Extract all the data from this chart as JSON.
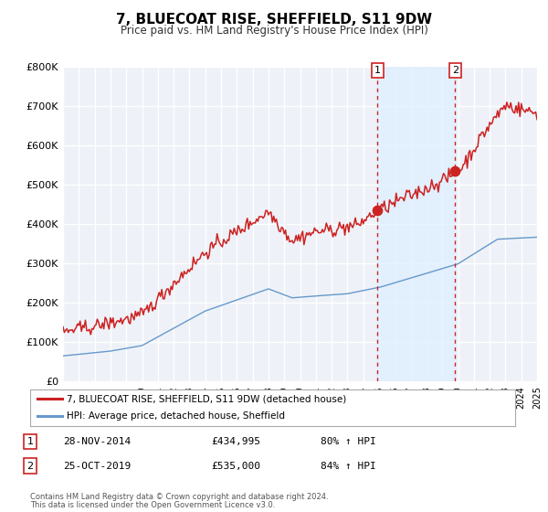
{
  "title": "7, BLUECOAT RISE, SHEFFIELD, S11 9DW",
  "subtitle": "Price paid vs. HM Land Registry's House Price Index (HPI)",
  "ylim": [
    0,
    800000
  ],
  "xlim_start": 1995,
  "xlim_end": 2025,
  "background_color": "#ffffff",
  "plot_bg_color": "#eef2f8",
  "grid_color": "#ffffff",
  "red_line_color": "#cc2222",
  "blue_line_color": "#6699cc",
  "span_fill_color": "#ddeeff",
  "marker1_x": 2014.91,
  "marker1_y": 434995,
  "marker2_x": 2019.81,
  "marker2_y": 535000,
  "vline1_x": 2014.91,
  "vline2_x": 2019.81,
  "legend_entries": [
    "7, BLUECOAT RISE, SHEFFIELD, S11 9DW (detached house)",
    "HPI: Average price, detached house, Sheffield"
  ],
  "table_rows": [
    [
      "1",
      "28-NOV-2014",
      "£434,995",
      "80% ↑ HPI"
    ],
    [
      "2",
      "25-OCT-2019",
      "£535,000",
      "84% ↑ HPI"
    ]
  ],
  "footnote1": "Contains HM Land Registry data © Crown copyright and database right 2024.",
  "footnote2": "This data is licensed under the Open Government Licence v3.0.",
  "ytick_labels": [
    "£0",
    "£100K",
    "£200K",
    "£300K",
    "£400K",
    "£500K",
    "£600K",
    "£700K",
    "£800K"
  ],
  "ytick_values": [
    0,
    100000,
    200000,
    300000,
    400000,
    500000,
    600000,
    700000,
    800000
  ],
  "red_seed": 10,
  "blue_seed": 7,
  "n_points": 361
}
